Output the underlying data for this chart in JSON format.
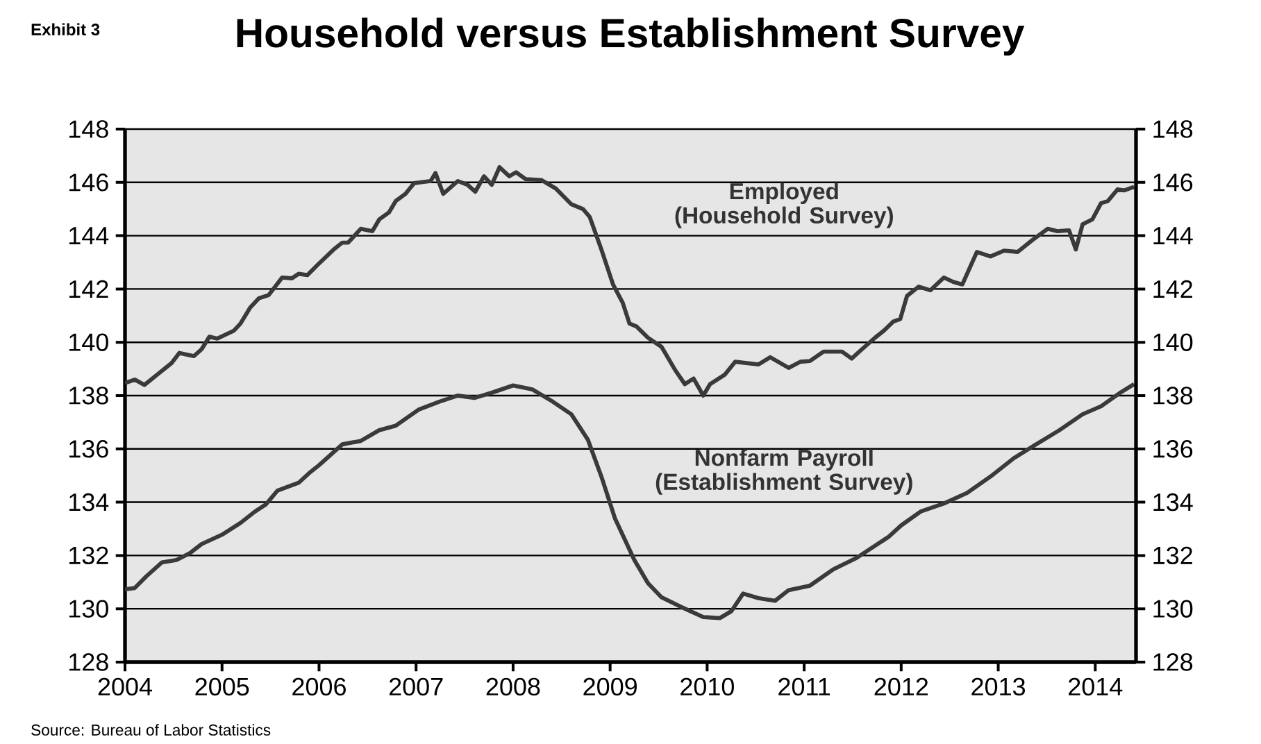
{
  "chart_data": {
    "type": "line",
    "title": "Household versus Establishment Survey",
    "annotations": [
      "Exhibit 3",
      "Source:  Bureau of Labor Statistics"
    ],
    "xlim": [
      2004,
      2014.42
    ],
    "xticks": [
      2004,
      2005,
      2006,
      2007,
      2008,
      2009,
      2010,
      2011,
      2012,
      2013,
      2014
    ],
    "ylim": [
      128,
      148
    ],
    "yticks": [
      128,
      130,
      132,
      134,
      136,
      138,
      140,
      142,
      144,
      146,
      148
    ],
    "y2lim": [
      128,
      148
    ],
    "y2ticks": [
      128,
      130,
      132,
      134,
      136,
      138,
      140,
      142,
      144,
      146,
      148
    ],
    "grid": "y",
    "legend": false,
    "series": [
      {
        "name": "Employed (Household Survey)",
        "color": "#3a3a3a",
        "x": [
          2004.0,
          2004.1,
          2004.2,
          2004.33,
          2004.48,
          2004.56,
          2004.71,
          2004.79,
          2004.87,
          2004.95,
          2005.12,
          2005.19,
          2005.29,
          2005.38,
          2005.48,
          2005.62,
          2005.72,
          2005.79,
          2005.88,
          2006.0,
          2006.15,
          2006.24,
          2006.3,
          2006.43,
          2006.55,
          2006.62,
          2006.72,
          2006.79,
          2006.89,
          2006.98,
          2007.15,
          2007.2,
          2007.28,
          2007.43,
          2007.53,
          2007.61,
          2007.7,
          2007.78,
          2007.86,
          2007.96,
          2008.03,
          2008.13,
          2008.29,
          2008.44,
          2008.6,
          2008.72,
          2008.79,
          2008.91,
          2009.03,
          2009.13,
          2009.2,
          2009.27,
          2009.39,
          2009.53,
          2009.67,
          2009.77,
          2009.86,
          2009.96,
          2010.03,
          2010.18,
          2010.29,
          2010.53,
          2010.65,
          2010.84,
          2010.96,
          2011.06,
          2011.2,
          2011.39,
          2011.49,
          2011.58,
          2011.73,
          2011.82,
          2011.92,
          2011.99,
          2012.06,
          2012.18,
          2012.3,
          2012.44,
          2012.54,
          2012.63,
          2012.78,
          2012.92,
          2013.06,
          2013.2,
          2013.35,
          2013.51,
          2013.61,
          2013.73,
          2013.8,
          2013.87,
          2013.97,
          2014.06,
          2014.13,
          2014.23,
          2014.3,
          2014.4
        ],
        "values": [
          138.47,
          138.6,
          138.4,
          138.78,
          139.22,
          139.6,
          139.48,
          139.74,
          140.21,
          140.14,
          140.43,
          140.7,
          141.3,
          141.65,
          141.77,
          142.43,
          142.4,
          142.57,
          142.52,
          142.96,
          143.48,
          143.74,
          143.74,
          144.26,
          144.17,
          144.61,
          144.87,
          145.3,
          145.57,
          145.97,
          146.05,
          146.35,
          145.57,
          146.05,
          145.91,
          145.65,
          146.23,
          145.91,
          146.57,
          146.23,
          146.38,
          146.12,
          146.09,
          145.77,
          145.18,
          145.0,
          144.7,
          143.48,
          142.17,
          141.48,
          140.7,
          140.6,
          140.17,
          139.83,
          138.96,
          138.43,
          138.64,
          138.0,
          138.43,
          138.78,
          139.27,
          139.17,
          139.44,
          139.04,
          139.27,
          139.3,
          139.65,
          139.65,
          139.39,
          139.69,
          140.17,
          140.43,
          140.78,
          140.87,
          141.74,
          142.09,
          141.95,
          142.43,
          142.26,
          142.17,
          143.39,
          143.22,
          143.44,
          143.39,
          143.83,
          144.26,
          144.17,
          144.2,
          143.48,
          144.43,
          144.61,
          145.22,
          145.3,
          145.74,
          145.7,
          145.83
        ]
      },
      {
        "name": "Nonfarm Payroll (Establishment Survey)",
        "color": "#3a3a3a",
        "x": [
          2004.0,
          2004.1,
          2004.22,
          2004.38,
          2004.53,
          2004.67,
          2004.79,
          2005.0,
          2005.19,
          2005.34,
          2005.45,
          2005.57,
          2005.67,
          2005.79,
          2005.91,
          2006.0,
          2006.24,
          2006.43,
          2006.62,
          2006.79,
          2007.03,
          2007.24,
          2007.43,
          2007.6,
          2007.79,
          2008.0,
          2008.2,
          2008.41,
          2008.6,
          2008.77,
          2008.91,
          2009.05,
          2009.25,
          2009.39,
          2009.53,
          2009.72,
          2009.96,
          2010.13,
          2010.25,
          2010.37,
          2010.53,
          2010.7,
          2010.84,
          2011.06,
          2011.3,
          2011.54,
          2011.87,
          2012.0,
          2012.2,
          2012.44,
          2012.68,
          2012.92,
          2013.16,
          2013.39,
          2013.63,
          2013.87,
          2014.06,
          2014.25,
          2014.4
        ],
        "values": [
          130.73,
          130.78,
          131.22,
          131.74,
          131.83,
          132.09,
          132.43,
          132.78,
          133.22,
          133.65,
          133.91,
          134.43,
          134.57,
          134.73,
          135.13,
          135.39,
          136.17,
          136.3,
          136.7,
          136.87,
          137.48,
          137.77,
          138.0,
          137.91,
          138.12,
          138.38,
          138.23,
          137.77,
          137.3,
          136.35,
          134.96,
          133.39,
          131.83,
          130.96,
          130.43,
          130.09,
          129.69,
          129.65,
          129.91,
          130.57,
          130.4,
          130.3,
          130.7,
          130.87,
          131.48,
          131.91,
          132.7,
          133.13,
          133.65,
          133.95,
          134.35,
          134.96,
          135.65,
          136.17,
          136.7,
          137.3,
          137.6,
          138.09,
          138.43
        ]
      }
    ]
  }
}
